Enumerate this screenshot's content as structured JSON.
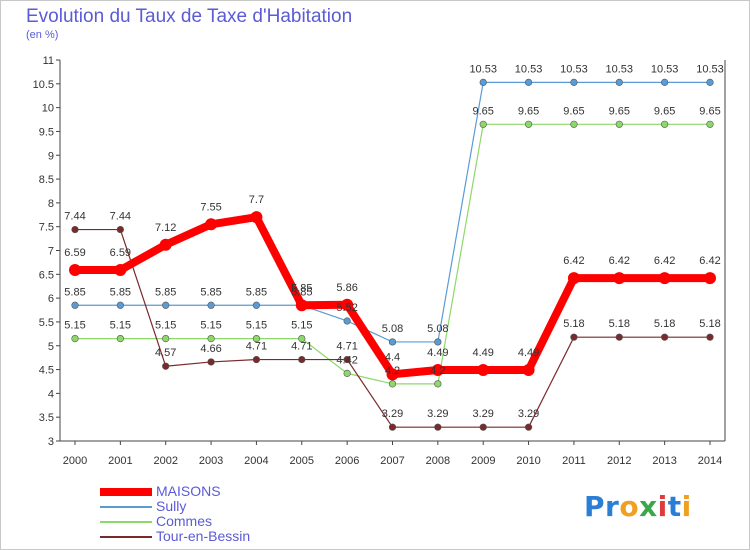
{
  "header": {
    "title": "Evolution du Taux de Taxe d'Habitation",
    "subtitle": "(en %)"
  },
  "logo": {
    "text": "Proxiti",
    "letters": [
      {
        "ch": "P",
        "color": "#2a7fd4"
      },
      {
        "ch": "r",
        "color": "#2a7fd4"
      },
      {
        "ch": "o",
        "color": "#f0a020"
      },
      {
        "ch": "x",
        "color": "#3aa84a"
      },
      {
        "ch": "i",
        "color": "#e03a3a"
      },
      {
        "ch": "t",
        "color": "#2a7fd4"
      },
      {
        "ch": "i",
        "color": "#f0a020"
      }
    ]
  },
  "chart_data": {
    "type": "line",
    "title": "Evolution du Taux de Taxe d'Habitation",
    "subtitle": "(en %)",
    "xlabel": "",
    "ylabel": "",
    "x": [
      "2000",
      "2001",
      "2002",
      "2003",
      "2004",
      "2005",
      "2006",
      "2007",
      "2008",
      "2009",
      "2010",
      "2011",
      "2012",
      "2013",
      "2014"
    ],
    "ylim": [
      3,
      11
    ],
    "yticks": [
      "3",
      "3.5",
      "4",
      "4.5",
      "5",
      "5.5",
      "6",
      "6.5",
      "7",
      "7.5",
      "8",
      "8.5",
      "9",
      "9.5",
      "10",
      "10.5",
      "11"
    ],
    "grid": false,
    "legend_position": "bottom-left",
    "series": [
      {
        "name": "MAISONS",
        "color": "#ff0000",
        "emphasis": true,
        "values": [
          6.59,
          6.59,
          7.12,
          7.55,
          7.7,
          5.85,
          5.86,
          4.4,
          4.49,
          4.49,
          4.49,
          6.42,
          6.42,
          6.42,
          6.42
        ],
        "labels": [
          "6.59",
          "6.59",
          "7.12",
          "7.55",
          "7.7",
          "5.85",
          "5.86",
          "4.4",
          "4.49",
          "4.49",
          "4.49",
          "6.42",
          "6.42",
          "6.42",
          "6.42"
        ]
      },
      {
        "name": "Sully",
        "color": "#5b9bd5",
        "emphasis": false,
        "values": [
          5.85,
          5.85,
          5.85,
          5.85,
          5.85,
          5.85,
          5.52,
          5.08,
          5.08,
          10.53,
          10.53,
          10.53,
          10.53,
          10.53,
          10.53
        ],
        "labels": [
          "5.85",
          "5.85",
          "5.85",
          "5.85",
          "5.85",
          "5.85",
          "5.52",
          "5.08",
          "5.08",
          "10.53",
          "10.53",
          "10.53",
          "10.53",
          "10.53",
          "10.53"
        ]
      },
      {
        "name": "Commes",
        "color": "#8ed86b",
        "emphasis": false,
        "values": [
          5.15,
          5.15,
          5.15,
          5.15,
          5.15,
          5.15,
          4.42,
          4.2,
          4.2,
          9.65,
          9.65,
          9.65,
          9.65,
          9.65,
          9.65
        ],
        "labels": [
          "5.15",
          "5.15",
          "5.15",
          "5.15",
          "5.15",
          "5.15",
          "4.42",
          "4.2",
          "4.2",
          "9.65",
          "9.65",
          "9.65",
          "9.65",
          "9.65",
          "9.65"
        ]
      },
      {
        "name": "Tour-en-Bessin",
        "color": "#7a2a2a",
        "emphasis": false,
        "values": [
          7.44,
          7.44,
          4.57,
          4.66,
          4.71,
          4.71,
          4.71,
          3.29,
          3.29,
          3.29,
          3.29,
          5.18,
          5.18,
          5.18,
          5.18
        ],
        "labels": [
          "7.44",
          "7.44",
          "4.57",
          "4.66",
          "4.71",
          "4.71",
          "4.71",
          "3.29",
          "3.29",
          "3.29",
          "3.29",
          "5.18",
          "5.18",
          "5.18",
          "5.18"
        ]
      }
    ]
  }
}
